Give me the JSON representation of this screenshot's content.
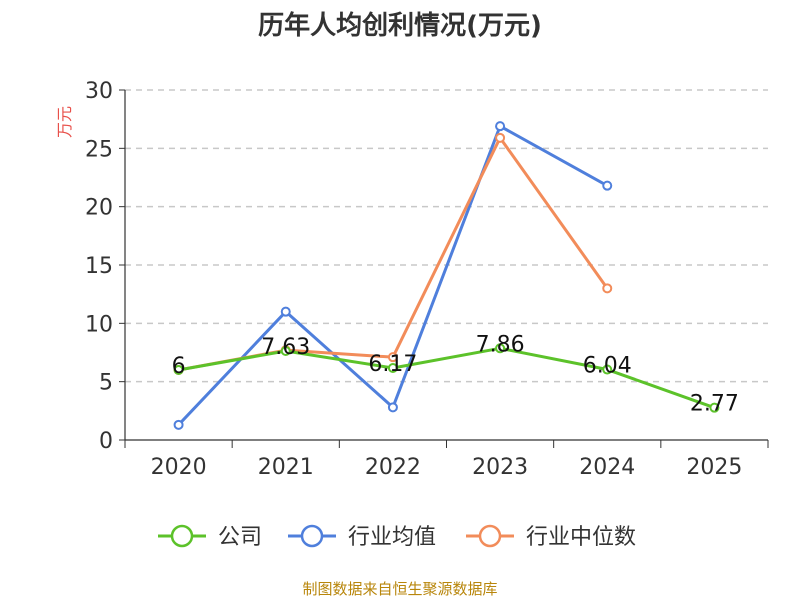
{
  "chart_data": {
    "type": "line",
    "title": "历年人均创利情况(万元)",
    "ylabel": "万元",
    "xlabel": "",
    "categories": [
      "2020",
      "2021",
      "2022",
      "2023",
      "2024",
      "2025"
    ],
    "ylim": [
      0,
      30
    ],
    "yticks": [
      0,
      5,
      10,
      15,
      20,
      25,
      30
    ],
    "grid": true,
    "legend_position": "bottom",
    "series": [
      {
        "name": "公司",
        "color": "#5cc22a",
        "values": [
          6,
          7.63,
          6.17,
          7.86,
          6.04,
          2.77
        ],
        "labels": [
          "6",
          "7.63",
          "6.17",
          "7.86",
          "6.04",
          "2.77"
        ]
      },
      {
        "name": "行业均值",
        "color": "#4f7fdc",
        "values": [
          1.3,
          11.0,
          2.8,
          26.9,
          21.8,
          null
        ]
      },
      {
        "name": "行业中位数",
        "color": "#f28c5a",
        "values": [
          6.0,
          7.7,
          7.1,
          25.9,
          13.0,
          null
        ]
      }
    ]
  },
  "source": "制图数据来自恒生聚源数据库"
}
